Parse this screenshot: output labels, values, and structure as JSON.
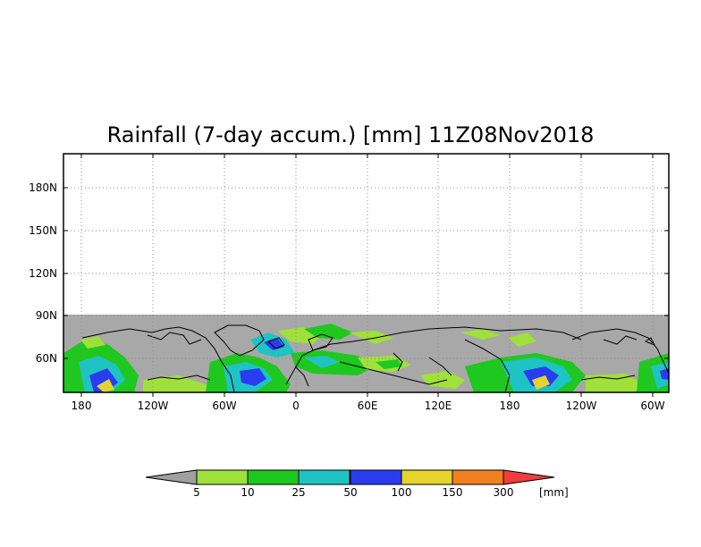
{
  "title": "Rainfall (7-day accum.) [mm] 11Z08Nov2018",
  "map": {
    "x_ticks": [
      "180",
      "120W",
      "60W",
      "0",
      "60E",
      "120E",
      "180",
      "120W",
      "60W"
    ],
    "y_ticks": [
      "180N",
      "150N",
      "120N",
      "90N",
      "60N"
    ],
    "data_domain_fill": "#a8a8a8",
    "gridlines": "dotted"
  },
  "colorbar": {
    "unit": "[mm]",
    "levels": [
      "5",
      "10",
      "25",
      "50",
      "100",
      "150",
      "300"
    ],
    "colors": [
      "#a0a0a0",
      "#9fe03a",
      "#1ec81e",
      "#1ec4c4",
      "#2a3cf0",
      "#e4d42c",
      "#f08020",
      "#f03c3c"
    ]
  }
}
